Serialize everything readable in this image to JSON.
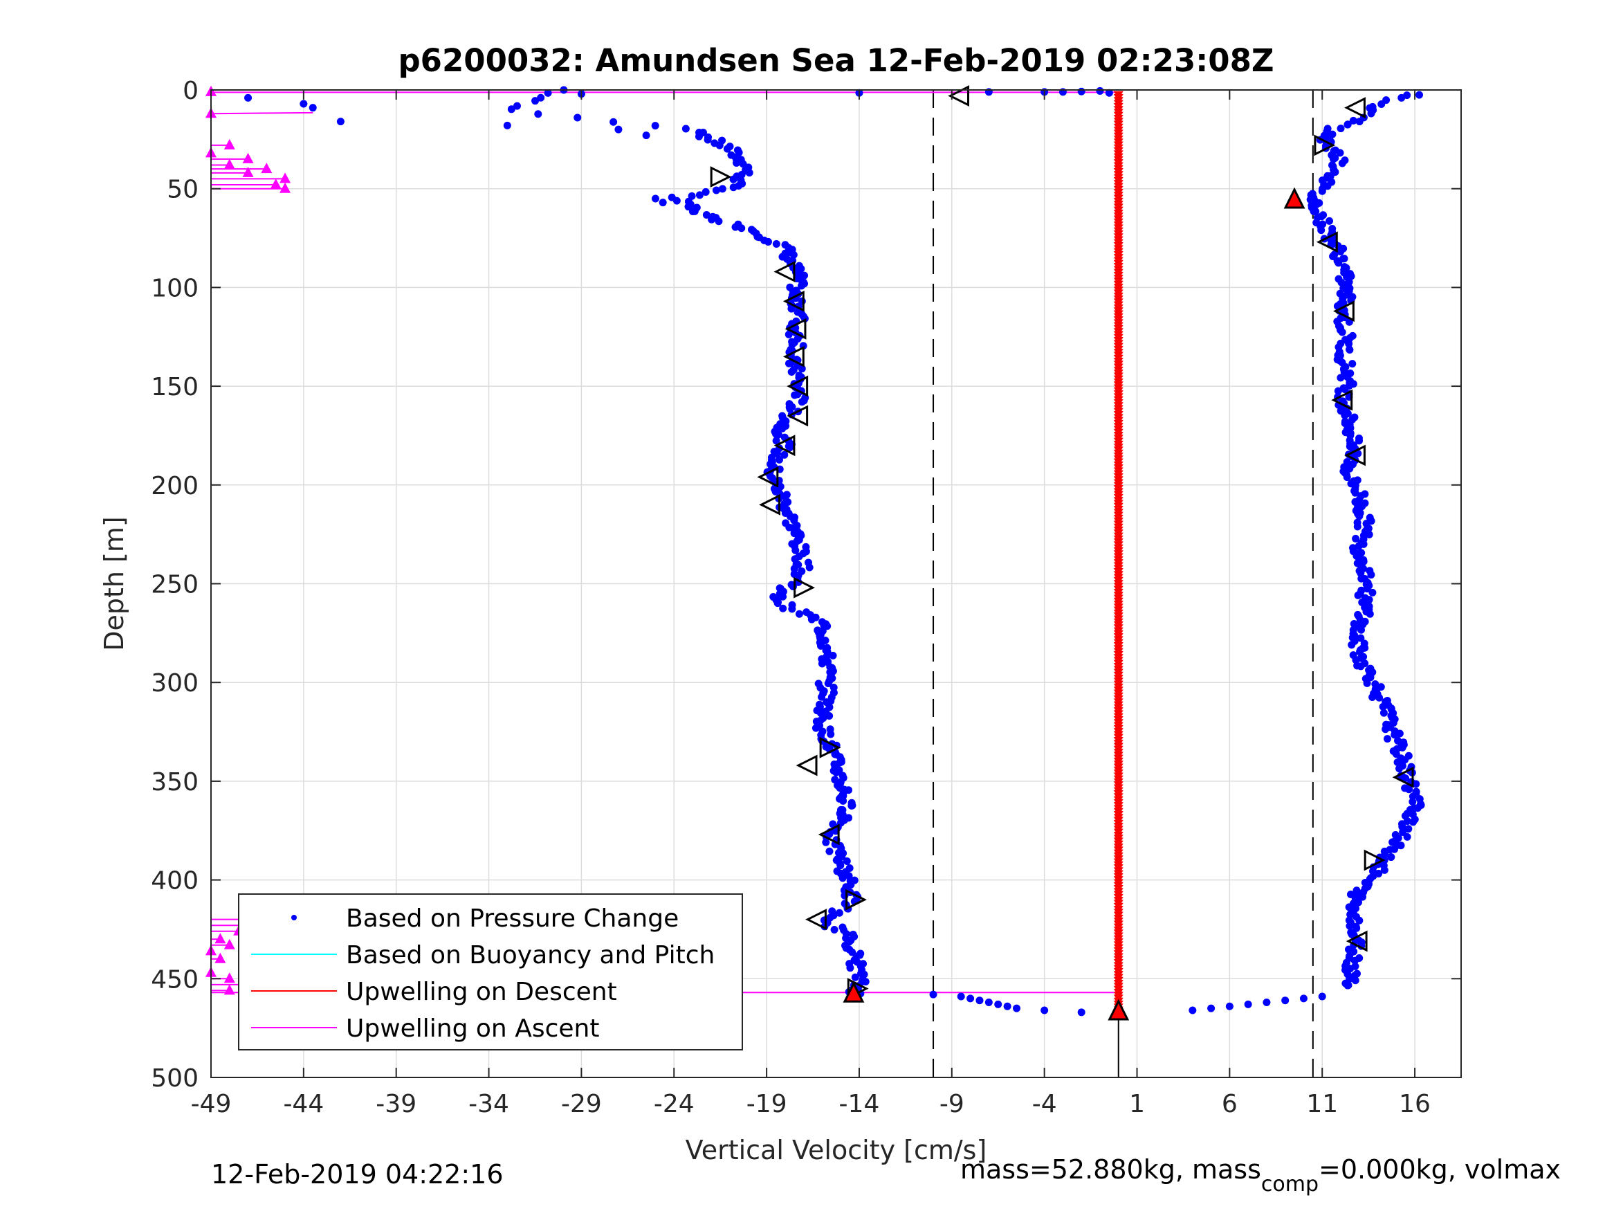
{
  "chart_data": {
    "type": "scatter",
    "title": "p6200032: Amundsen Sea 12-Feb-2019 02:23:08Z",
    "xlabel": "Vertical Velocity [cm/s]",
    "ylabel": "Depth [m]",
    "xlim": [
      -49,
      18.5
    ],
    "ylim": [
      0,
      500
    ],
    "y_reversed": true,
    "grid": true,
    "xticks": [
      -49,
      -44,
      -39,
      -34,
      -29,
      -24,
      -19,
      -14,
      -9,
      -4,
      1,
      6,
      11,
      16
    ],
    "xtick_labels": [
      "-49",
      "-44",
      "-39",
      "-34",
      "-29",
      "-24",
      "-19",
      "-14",
      "-9",
      "-4",
      "1",
      "6",
      "11",
      "16"
    ],
    "yticks": [
      0,
      50,
      100,
      150,
      200,
      250,
      300,
      350,
      400,
      450,
      500
    ],
    "ytick_labels": [
      "0",
      "50",
      "100",
      "150",
      "200",
      "250",
      "300",
      "350",
      "400",
      "450",
      "500"
    ],
    "reference_lines_x": [
      -10,
      10.5
    ],
    "legend_position": "bottom-left",
    "legend": [
      {
        "label": "Based on Pressure Change",
        "color": "#0000ff",
        "marker": "dot"
      },
      {
        "label": "Based on Buoyancy and Pitch",
        "color": "#00ffff",
        "marker": "line"
      },
      {
        "label": "Upwelling on Descent",
        "color": "#ff0000",
        "marker": "line"
      },
      {
        "label": "Upwelling on Ascent",
        "color": "#ff00ff",
        "marker": "line"
      }
    ],
    "series": [
      {
        "name": "Based on Pressure Change",
        "color": "#0000ff",
        "descent_profile": {
          "depth": [
            0,
            10,
            20,
            25,
            30,
            35,
            40,
            45,
            50,
            55,
            60,
            65,
            70,
            75,
            80,
            85,
            90,
            95,
            100,
            105,
            110,
            115,
            120,
            125,
            130,
            135,
            140,
            145,
            150,
            155,
            160,
            165,
            170,
            175,
            180,
            185,
            190,
            195,
            200,
            205,
            210,
            215,
            220,
            225,
            230,
            235,
            240,
            245,
            250,
            255,
            260,
            265,
            270,
            275,
            280,
            285,
            290,
            295,
            300,
            305,
            310,
            315,
            320,
            325,
            330,
            335,
            340,
            345,
            350,
            355,
            360,
            365,
            370,
            375,
            380,
            385,
            390,
            395,
            400,
            405,
            410,
            415,
            420,
            425,
            430,
            435,
            440,
            445,
            450,
            455,
            458
          ],
          "velocity": [
            -30,
            -33,
            -23,
            -22,
            -21,
            -20.5,
            -20,
            -20.5,
            -21,
            -24,
            -23,
            -22,
            -20,
            -19,
            -18,
            -17.8,
            -17.5,
            -17.3,
            -17.4,
            -17.6,
            -17.3,
            -17.2,
            -17.5,
            -17.4,
            -17.2,
            -17.8,
            -17.5,
            -17.3,
            -17.4,
            -17.2,
            -17.5,
            -17.8,
            -18.1,
            -18.2,
            -18.0,
            -18.4,
            -18.6,
            -18.7,
            -18.5,
            -18.2,
            -18.0,
            -17.8,
            -17.6,
            -17.4,
            -17.3,
            -17.2,
            -17.0,
            -17.2,
            -17.5,
            -18.5,
            -18.2,
            -17,
            -16.0,
            -15.9,
            -15.8,
            -15.8,
            -15.7,
            -15.7,
            -15.8,
            -15.7,
            -15.8,
            -15.9,
            -16.0,
            -15.9,
            -15.6,
            -15.5,
            -15.3,
            -15.1,
            -15.0,
            -14.8,
            -14.8,
            -14.6,
            -14.9,
            -15.3,
            -15.6,
            -15.3,
            -15.0,
            -14.8,
            -14.6,
            -14.5,
            -14.4,
            -14.8,
            -16.2,
            -15.0,
            -14.5,
            -14.3,
            -14.2,
            -14.1,
            -14.0,
            -14.1,
            -14.2
          ]
        },
        "ascent_profile": {
          "depth": [
            2,
            8,
            15,
            20,
            25,
            30,
            35,
            40,
            45,
            50,
            55,
            60,
            65,
            70,
            75,
            80,
            85,
            90,
            95,
            100,
            105,
            110,
            115,
            120,
            125,
            130,
            135,
            140,
            145,
            150,
            155,
            160,
            165,
            170,
            175,
            180,
            185,
            190,
            195,
            200,
            205,
            210,
            215,
            220,
            225,
            230,
            235,
            240,
            245,
            250,
            255,
            260,
            265,
            270,
            275,
            280,
            285,
            290,
            295,
            300,
            305,
            310,
            315,
            320,
            325,
            330,
            335,
            340,
            345,
            350,
            355,
            360,
            365,
            370,
            375,
            380,
            385,
            390,
            395,
            400,
            405,
            410,
            415,
            420,
            425,
            430,
            435,
            440,
            445,
            450,
            455
          ],
          "velocity": [
            16,
            14,
            13,
            11.5,
            11.2,
            11.5,
            12,
            11.8,
            11.5,
            10.8,
            10.5,
            10.8,
            11.0,
            11.2,
            11.5,
            11.8,
            12.0,
            12.1,
            12.2,
            12.2,
            12.3,
            12.2,
            12.1,
            12.2,
            12.3,
            12.2,
            12.2,
            12.3,
            12.4,
            12.3,
            12.2,
            12.3,
            12.4,
            12.5,
            12.6,
            12.6,
            12.7,
            12.5,
            12.4,
            12.8,
            13.0,
            13.1,
            13.2,
            13.3,
            13.2,
            13.0,
            13.1,
            13.3,
            13.4,
            13.5,
            13.3,
            13.2,
            13.4,
            13.0,
            12.8,
            12.9,
            13.0,
            13.2,
            13.5,
            13.8,
            14.0,
            14.2,
            14.5,
            14.6,
            14.8,
            15.0,
            15.2,
            15.4,
            15.5,
            15.7,
            15.9,
            16.0,
            16.0,
            15.8,
            15.5,
            15.0,
            14.8,
            14.4,
            14.0,
            13.5,
            13.0,
            12.8,
            12.6,
            12.9,
            12.7,
            12.8,
            12.8,
            12.7,
            12.6,
            12.7,
            12.5
          ]
        },
        "surface_points": {
          "depth": [
            1.5,
            1,
            1,
            1,
            0.8,
            0.5,
            1.5,
            2,
            4,
            7,
            9,
            16,
            18,
            20,
            23,
            55,
            57
          ],
          "velocity": [
            -14,
            -7,
            -4,
            -3,
            -2,
            -1,
            -0.5,
            -29,
            -47,
            -44,
            -43.5,
            -42,
            -33,
            -27,
            -25.5,
            -25,
            -24.6
          ]
        },
        "bottom_points": {
          "depth": [
            458,
            459,
            460,
            461,
            462,
            463,
            464,
            465,
            466,
            467,
            466,
            465,
            464,
            463,
            462,
            461,
            460,
            459
          ],
          "velocity": [
            -10,
            -8.5,
            -8,
            -7.5,
            -7,
            -6.5,
            -6,
            -5.5,
            -4,
            -2,
            4,
            5,
            6,
            7,
            8,
            9,
            10,
            11
          ]
        }
      },
      {
        "name": "Upwelling on Descent",
        "color": "#ff0000",
        "points": {
          "depth_from": 2,
          "depth_to": 466,
          "velocity": 0
        }
      },
      {
        "name": "Upwelling on Ascent",
        "color": "#ff00ff",
        "velocity_at_wall": -49,
        "top_markers_depth": [
          1,
          12,
          28,
          32,
          35,
          38,
          40,
          42,
          45,
          48,
          50
        ],
        "top_markers_velocity": [
          -49,
          -49,
          -48,
          -49,
          -47,
          -48,
          -46,
          -47,
          -45,
          -45.5,
          -45
        ],
        "bottom_markers_depth": [
          420,
          423,
          426,
          430,
          433,
          436,
          440,
          447,
          450,
          453,
          456
        ],
        "bottom_markers_velocity": [
          -46.5,
          -47,
          -47.5,
          -48.5,
          -48,
          -49,
          -48.5,
          -49,
          -48,
          -47,
          -48
        ]
      }
    ],
    "triangle_markers": [
      {
        "depth": 3,
        "velocity": -8.6,
        "dir": "left"
      },
      {
        "depth": 9,
        "velocity": 12.8,
        "dir": "left"
      },
      {
        "depth": 28,
        "velocity": 11.1,
        "dir": "right"
      },
      {
        "depth": 44,
        "velocity": -21.5,
        "dir": "right"
      },
      {
        "depth": 55,
        "velocity": 9.5,
        "dir": "up",
        "filled": true
      },
      {
        "depth": 77,
        "velocity": 11.3,
        "dir": "left"
      },
      {
        "depth": 92,
        "velocity": -18.0,
        "dir": "left"
      },
      {
        "depth": 107,
        "velocity": -17.5,
        "dir": "left"
      },
      {
        "depth": 112,
        "velocity": 12.2,
        "dir": "left"
      },
      {
        "depth": 121,
        "velocity": -17.4,
        "dir": "left"
      },
      {
        "depth": 135,
        "velocity": -17.5,
        "dir": "left"
      },
      {
        "depth": 150,
        "velocity": -17.3,
        "dir": "left"
      },
      {
        "depth": 157,
        "velocity": 12.1,
        "dir": "left"
      },
      {
        "depth": 165,
        "velocity": -17.3,
        "dir": "left"
      },
      {
        "depth": 180,
        "velocity": -18.0,
        "dir": "left"
      },
      {
        "depth": 185,
        "velocity": 12.8,
        "dir": "left"
      },
      {
        "depth": 196,
        "velocity": -18.9,
        "dir": "left"
      },
      {
        "depth": 210,
        "velocity": -18.8,
        "dir": "left"
      },
      {
        "depth": 252,
        "velocity": -17.0,
        "dir": "right"
      },
      {
        "depth": 333,
        "velocity": -15.6,
        "dir": "right"
      },
      {
        "depth": 342,
        "velocity": -16.8,
        "dir": "left"
      },
      {
        "depth": 348,
        "velocity": 15.4,
        "dir": "left"
      },
      {
        "depth": 377,
        "velocity": -15.6,
        "dir": "left"
      },
      {
        "depth": 390,
        "velocity": 13.8,
        "dir": "right"
      },
      {
        "depth": 410,
        "velocity": -14.2,
        "dir": "right"
      },
      {
        "depth": 420,
        "velocity": -16.3,
        "dir": "left"
      },
      {
        "depth": 431,
        "velocity": 12.9,
        "dir": "left"
      },
      {
        "depth": 455,
        "velocity": -14.1,
        "dir": "right"
      },
      {
        "depth": 457,
        "velocity": -14.3,
        "dir": "up",
        "filled": true
      },
      {
        "depth": 466,
        "velocity": 0,
        "dir": "up",
        "filled": true
      }
    ]
  },
  "footer": {
    "timestamp": "12-Feb-2019 04:22:16",
    "mass_text": "mass=52.880kg, mass",
    "mass_sub": "comp",
    "mass_rest": "=0.000kg, volmax"
  }
}
